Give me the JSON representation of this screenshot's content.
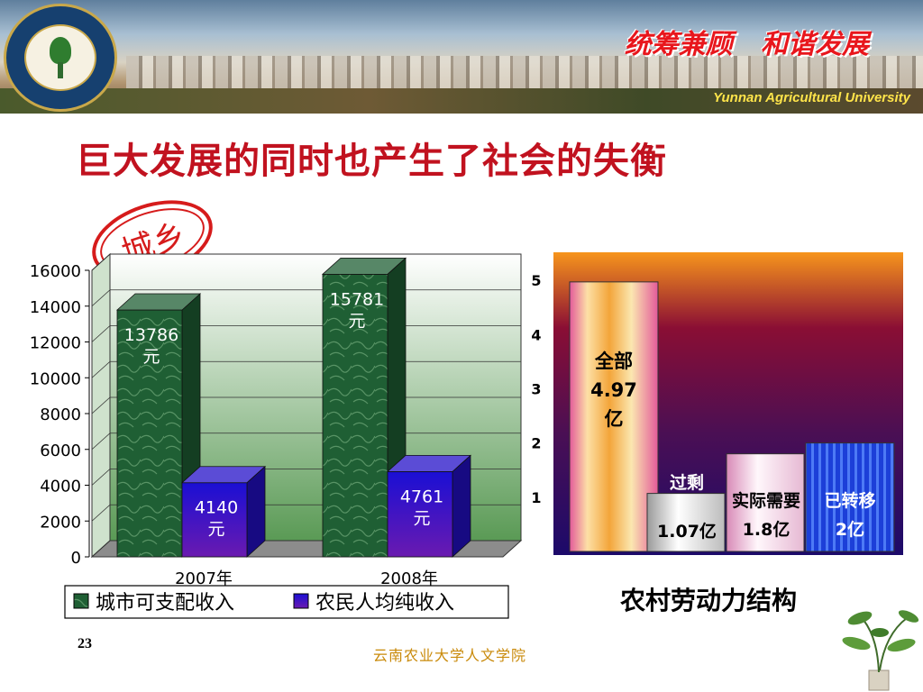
{
  "header": {
    "slogan": "统筹兼顾   和谐发展",
    "university_en": "Yunnan Agricultural University",
    "logo_icon": "university-seal-icon",
    "colors": {
      "slogan": "#e8161c",
      "university_en": "#ffe44a"
    }
  },
  "title": "巨大发展的同时也产生了社会的失衡",
  "stamp": {
    "text": "城乡",
    "color": "#d61b1b"
  },
  "chart_data": [
    {
      "type": "bar",
      "categories": [
        "2007年",
        "2008年"
      ],
      "series": [
        {
          "name": "城市可支配收入",
          "values": [
            13786,
            15781
          ],
          "labels": [
            "13786\n元",
            "15781\n元"
          ],
          "color": "#1f5f34"
        },
        {
          "name": "农民人均纯收入",
          "values": [
            4140,
            4761
          ],
          "labels": [
            "4140\n元",
            "4761\n元"
          ],
          "color": "#2410c8"
        }
      ],
      "yticks": [
        "0",
        "2000",
        "4000",
        "6000",
        "8000",
        "10000",
        "12000",
        "14000",
        "16000"
      ],
      "ylim": [
        0,
        16000
      ],
      "grid": true,
      "legend": "bottom",
      "title": ""
    },
    {
      "type": "bar",
      "categories": [
        "全部",
        "过剩",
        "实际需要",
        "已转移"
      ],
      "values": [
        4.97,
        1.07,
        1.8,
        2
      ],
      "labels": [
        "全部\n4.97\n亿",
        "1.07亿",
        "实际需要\n1.8亿",
        "已转移\n2亿"
      ],
      "top_labels": [
        "",
        "过剩",
        "",
        ""
      ],
      "yticks": [
        "1",
        "2",
        "3",
        "4",
        "5"
      ],
      "ylim": [
        0,
        5.35
      ],
      "title": "农村劳动力结构",
      "colors": [
        "#f3a53a",
        "#e8e8e8",
        "#f0e4ef",
        "#1c3fd8"
      ]
    }
  ],
  "page_number": "23",
  "footer": "云南农业大学人文学院",
  "decoration": {
    "plant_icon": "potted-plant-icon"
  }
}
